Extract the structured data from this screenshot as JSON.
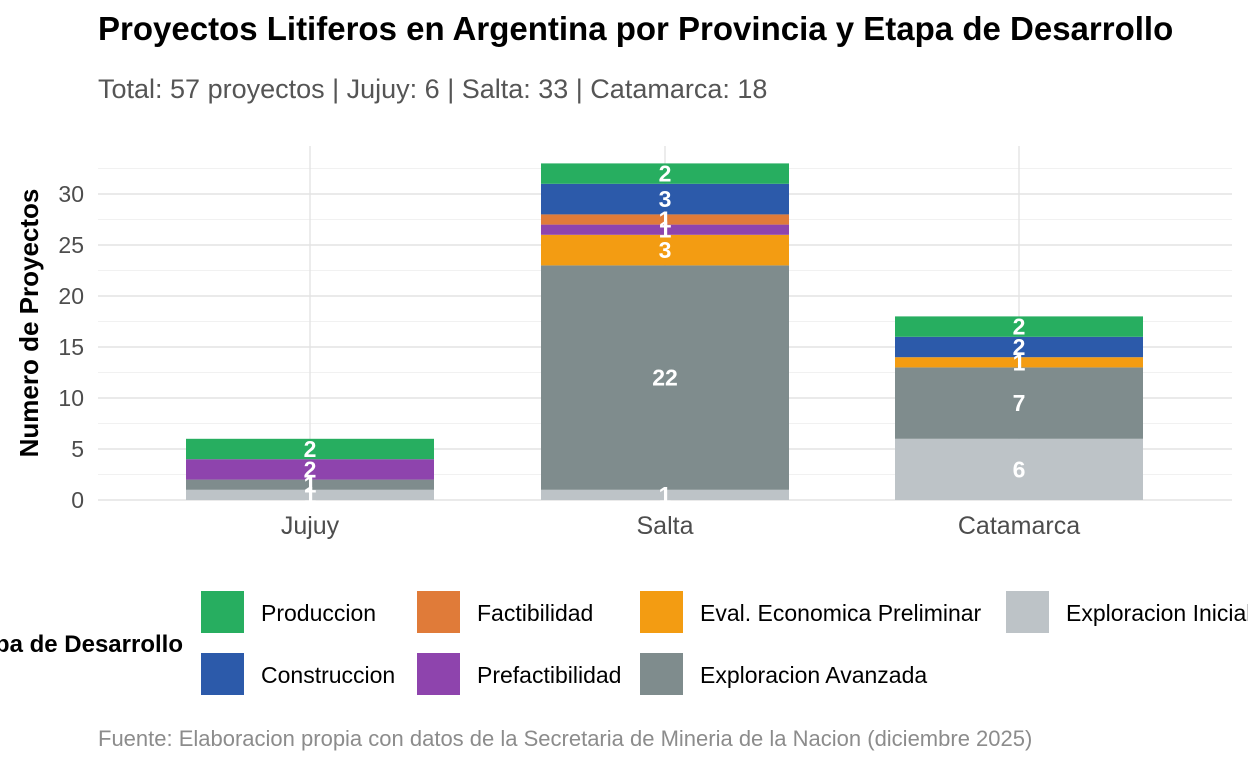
{
  "chart_data": {
    "type": "bar",
    "stacked": true,
    "title": "Proyectos Litiferos en Argentina por Provincia y Etapa de Desarrollo",
    "subtitle": "Total: 57 proyectos | Jujuy: 6 | Salta: 33 | Catamarca: 18",
    "caption": "Fuente: Elaboracion propia con datos de la Secretaria de Mineria de la Nacion (diciembre 2025)",
    "xlabel": "",
    "ylabel": "Numero de Proyectos",
    "ylim": [
      0,
      35
    ],
    "yticks": [
      0,
      5,
      10,
      15,
      20,
      25,
      30
    ],
    "grid": true,
    "categories": [
      "Jujuy",
      "Salta",
      "Catamarca"
    ],
    "legend": {
      "title": "Etapa de Desarrollo",
      "position": "bottom"
    },
    "series": [
      {
        "name": "Exploracion Inicial",
        "color": "#BDC3C7",
        "values": [
          1,
          1,
          6
        ]
      },
      {
        "name": "Exploracion Avanzada",
        "color": "#7F8C8D",
        "values": [
          1,
          22,
          7
        ]
      },
      {
        "name": "Eval. Economica Preliminar",
        "color": "#F39C12",
        "values": [
          0,
          3,
          1
        ]
      },
      {
        "name": "Prefactibilidad",
        "color": "#8E44AD",
        "values": [
          2,
          1,
          0
        ]
      },
      {
        "name": "Factibilidad",
        "color": "#E07B39",
        "values": [
          0,
          1,
          0
        ]
      },
      {
        "name": "Construccion",
        "color": "#2C5AAA",
        "values": [
          0,
          3,
          2
        ]
      },
      {
        "name": "Produccion",
        "color": "#27AE60",
        "values": [
          2,
          2,
          2
        ]
      }
    ],
    "legend_order": [
      "Produccion",
      "Factibilidad",
      "Eval. Economica Preliminar",
      "Exploracion Inicial",
      "Construccion",
      "Prefactibilidad",
      "Exploracion Avanzada"
    ]
  }
}
